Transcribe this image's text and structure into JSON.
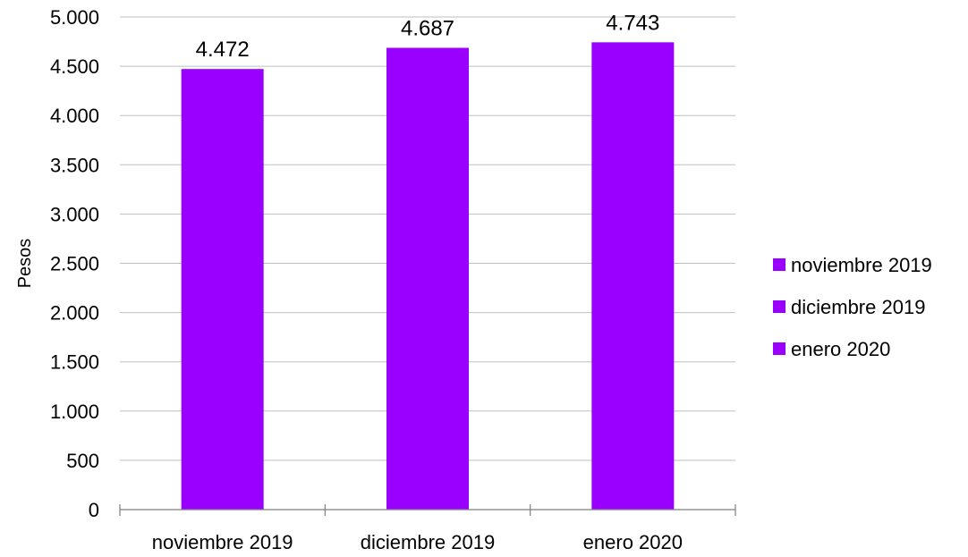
{
  "chart_data": {
    "type": "bar",
    "categories": [
      "noviembre 2019",
      "diciembre 2019",
      "enero 2020"
    ],
    "values": [
      4472,
      4687,
      4743
    ],
    "data_labels": [
      "4.472",
      "4.687",
      "4.743"
    ],
    "title": "",
    "xlabel": "",
    "ylabel": "Pesos",
    "ylim": [
      0,
      5000
    ],
    "yticks": [
      0,
      500,
      1000,
      1500,
      2000,
      2500,
      3000,
      3500,
      4000,
      4500,
      5000
    ],
    "ytick_labels": [
      "0",
      "500",
      "1.000",
      "1.500",
      "2.000",
      "2.500",
      "3.000",
      "3.500",
      "4.000",
      "4.500",
      "5.000"
    ],
    "grid": true,
    "legend": {
      "position": "right",
      "entries": [
        "noviembre 2019",
        "diciembre 2019",
        "enero 2020"
      ]
    },
    "colors": {
      "bar": "#9900ff",
      "gridline": "#bfbfbf",
      "axis": "#7f7f7f"
    }
  }
}
